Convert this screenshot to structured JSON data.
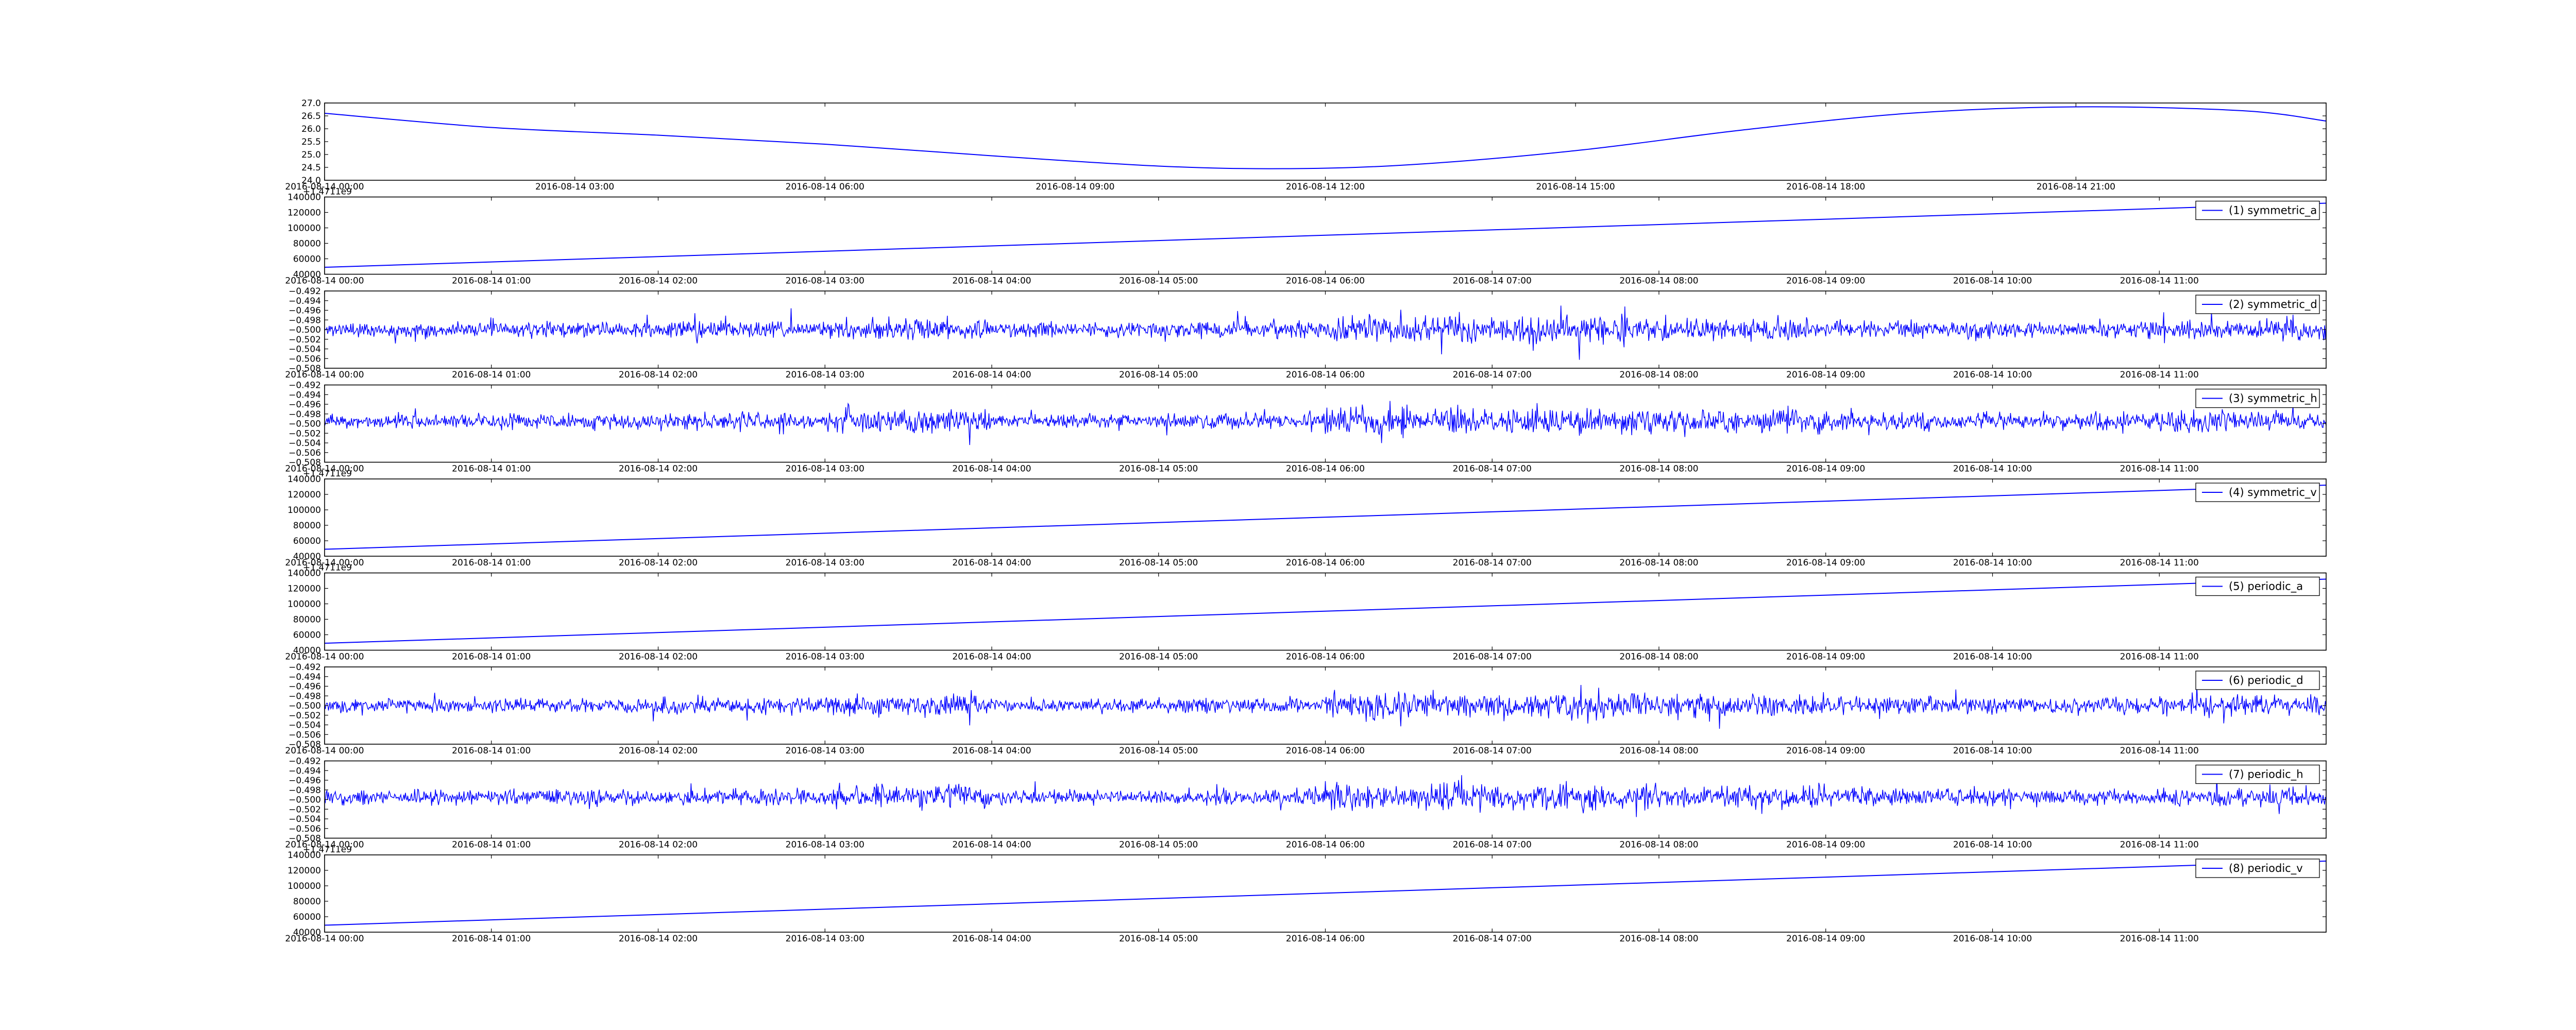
{
  "figure": {
    "background": "#ffffff",
    "line_color": "#0000ff"
  },
  "chart_data": [
    {
      "type": "line",
      "legend": "",
      "xlim": [
        "2016-08-14 00:00",
        "2016-08-15 00:00"
      ],
      "x_ticks": [
        "2016-08-14 00:00",
        "2016-08-14 03:00",
        "2016-08-14 06:00",
        "2016-08-14 09:00",
        "2016-08-14 12:00",
        "2016-08-14 15:00",
        "2016-08-14 18:00",
        "2016-08-14 21:00"
      ],
      "y_ticks": [
        "27.0",
        "26.5",
        "26.0",
        "25.5",
        "25.0",
        "24.5",
        "24.0"
      ],
      "ylim": [
        24.0,
        27.0
      ],
      "y_offset": "",
      "signal": "smooth",
      "series": [
        {
          "x": [
            "2016-08-14 00:00",
            "2016-08-14 02:00",
            "2016-08-14 04:00",
            "2016-08-14 06:00",
            "2016-08-14 08:00",
            "2016-08-14 10:00",
            "2016-08-14 11:30",
            "2016-08-14 13:00",
            "2016-08-14 15:00",
            "2016-08-14 17:00",
            "2016-08-14 19:00",
            "2016-08-14 21:00",
            "2016-08-14 23:00",
            "2016-08-15 00:00"
          ],
          "values": [
            26.6,
            26.05,
            25.75,
            25.4,
            24.95,
            24.55,
            24.45,
            24.6,
            25.15,
            25.95,
            26.6,
            26.85,
            26.7,
            26.3
          ]
        }
      ]
    },
    {
      "type": "line",
      "legend": "(1) symmetric_a",
      "xlim": [
        "2016-08-14 00:00",
        "2016-08-14 12:00"
      ],
      "x_ticks": [
        "2016-08-14 00:00",
        "2016-08-14 01:00",
        "2016-08-14 02:00",
        "2016-08-14 03:00",
        "2016-08-14 04:00",
        "2016-08-14 05:00",
        "2016-08-14 06:00",
        "2016-08-14 07:00",
        "2016-08-14 08:00",
        "2016-08-14 09:00",
        "2016-08-14 10:00",
        "2016-08-14 11:00"
      ],
      "y_ticks": [
        "140000",
        "120000",
        "100000",
        "80000",
        "60000",
        "40000"
      ],
      "ylim": [
        40000,
        140000
      ],
      "y_offset": "+1.4711e9",
      "signal": "linear",
      "series": [
        {
          "x": [
            "2016-08-14 00:00",
            "2016-08-14 12:00"
          ],
          "values": [
            49000,
            132000
          ]
        }
      ]
    },
    {
      "type": "line",
      "legend": "(2) symmetric_d",
      "xlim": [
        "2016-08-14 00:00",
        "2016-08-14 12:00"
      ],
      "x_ticks": [
        "2016-08-14 00:00",
        "2016-08-14 01:00",
        "2016-08-14 02:00",
        "2016-08-14 03:00",
        "2016-08-14 04:00",
        "2016-08-14 05:00",
        "2016-08-14 06:00",
        "2016-08-14 07:00",
        "2016-08-14 08:00",
        "2016-08-14 09:00",
        "2016-08-14 10:00",
        "2016-08-14 11:00"
      ],
      "y_ticks": [
        "−0.492",
        "−0.494",
        "−0.496",
        "−0.498",
        "−0.500",
        "−0.502",
        "−0.504",
        "−0.506",
        "−0.508"
      ],
      "ylim": [
        -0.508,
        -0.492
      ],
      "y_offset": "",
      "signal": "noise",
      "seed": 11,
      "center": -0.5,
      "amplitude": 0.002,
      "envelope": [
        1.0,
        1.1,
        1.2,
        1.5,
        1.0,
        1.2,
        2.0,
        1.9,
        1.6,
        1.3,
        1.2,
        1.4
      ]
    },
    {
      "type": "line",
      "legend": "(3) symmetric_h",
      "xlim": [
        "2016-08-14 00:00",
        "2016-08-14 12:00"
      ],
      "x_ticks": [
        "2016-08-14 00:00",
        "2016-08-14 01:00",
        "2016-08-14 02:00",
        "2016-08-14 03:00",
        "2016-08-14 04:00",
        "2016-08-14 05:00",
        "2016-08-14 06:00",
        "2016-08-14 07:00",
        "2016-08-14 08:00",
        "2016-08-14 09:00",
        "2016-08-14 10:00",
        "2016-08-14 11:00"
      ],
      "y_ticks": [
        "−0.492",
        "−0.494",
        "−0.496",
        "−0.498",
        "−0.500",
        "−0.502",
        "−0.504",
        "−0.506",
        "−0.508"
      ],
      "ylim": [
        -0.508,
        -0.492
      ],
      "y_offset": "",
      "signal": "noise",
      "seed": 23,
      "center": -0.4995,
      "amplitude": 0.002,
      "envelope": [
        1.0,
        1.1,
        1.2,
        1.6,
        1.0,
        1.2,
        2.0,
        1.9,
        1.6,
        1.3,
        1.2,
        1.4
      ]
    },
    {
      "type": "line",
      "legend": "(4) symmetric_v",
      "xlim": [
        "2016-08-14 00:00",
        "2016-08-14 12:00"
      ],
      "x_ticks": [
        "2016-08-14 00:00",
        "2016-08-14 01:00",
        "2016-08-14 02:00",
        "2016-08-14 03:00",
        "2016-08-14 04:00",
        "2016-08-14 05:00",
        "2016-08-14 06:00",
        "2016-08-14 07:00",
        "2016-08-14 08:00",
        "2016-08-14 09:00",
        "2016-08-14 10:00",
        "2016-08-14 11:00"
      ],
      "y_ticks": [
        "140000",
        "120000",
        "100000",
        "80000",
        "60000",
        "40000"
      ],
      "ylim": [
        40000,
        140000
      ],
      "y_offset": "+1.4711e9",
      "signal": "linear",
      "series": [
        {
          "x": [
            "2016-08-14 00:00",
            "2016-08-14 12:00"
          ],
          "values": [
            49000,
            132000
          ]
        }
      ]
    },
    {
      "type": "line",
      "legend": "(5) periodic_a",
      "xlim": [
        "2016-08-14 00:00",
        "2016-08-14 12:00"
      ],
      "x_ticks": [
        "2016-08-14 00:00",
        "2016-08-14 01:00",
        "2016-08-14 02:00",
        "2016-08-14 03:00",
        "2016-08-14 04:00",
        "2016-08-14 05:00",
        "2016-08-14 06:00",
        "2016-08-14 07:00",
        "2016-08-14 08:00",
        "2016-08-14 09:00",
        "2016-08-14 10:00",
        "2016-08-14 11:00"
      ],
      "y_ticks": [
        "140000",
        "120000",
        "100000",
        "80000",
        "60000",
        "40000"
      ],
      "ylim": [
        40000,
        140000
      ],
      "y_offset": "+1.4711e9",
      "signal": "linear",
      "series": [
        {
          "x": [
            "2016-08-14 00:00",
            "2016-08-14 12:00"
          ],
          "values": [
            49000,
            132000
          ]
        }
      ]
    },
    {
      "type": "line",
      "legend": "(6) periodic_d",
      "xlim": [
        "2016-08-14 00:00",
        "2016-08-14 12:00"
      ],
      "x_ticks": [
        "2016-08-14 00:00",
        "2016-08-14 01:00",
        "2016-08-14 02:00",
        "2016-08-14 03:00",
        "2016-08-14 04:00",
        "2016-08-14 05:00",
        "2016-08-14 06:00",
        "2016-08-14 07:00",
        "2016-08-14 08:00",
        "2016-08-14 09:00",
        "2016-08-14 10:00",
        "2016-08-14 11:00"
      ],
      "y_ticks": [
        "−0.492",
        "−0.494",
        "−0.496",
        "−0.498",
        "−0.500",
        "−0.502",
        "−0.504",
        "−0.506",
        "−0.508"
      ],
      "ylim": [
        -0.508,
        -0.492
      ],
      "y_offset": "",
      "signal": "noise",
      "seed": 37,
      "center": -0.5,
      "amplitude": 0.002,
      "envelope": [
        1.0,
        1.1,
        1.2,
        1.5,
        1.0,
        1.2,
        2.0,
        1.9,
        1.6,
        1.3,
        1.2,
        1.4
      ]
    },
    {
      "type": "line",
      "legend": "(7) periodic_h",
      "xlim": [
        "2016-08-14 00:00",
        "2016-08-14 12:00"
      ],
      "x_ticks": [
        "2016-08-14 00:00",
        "2016-08-14 01:00",
        "2016-08-14 02:00",
        "2016-08-14 03:00",
        "2016-08-14 04:00",
        "2016-08-14 05:00",
        "2016-08-14 06:00",
        "2016-08-14 07:00",
        "2016-08-14 08:00",
        "2016-08-14 09:00",
        "2016-08-14 10:00",
        "2016-08-14 11:00"
      ],
      "y_ticks": [
        "−0.492",
        "−0.494",
        "−0.496",
        "−0.498",
        "−0.500",
        "−0.502",
        "−0.504",
        "−0.506",
        "−0.508"
      ],
      "ylim": [
        -0.508,
        -0.492
      ],
      "y_offset": "",
      "signal": "noise",
      "seed": 53,
      "center": -0.4995,
      "amplitude": 0.002,
      "envelope": [
        1.0,
        1.1,
        1.2,
        1.6,
        1.0,
        1.2,
        2.0,
        1.9,
        1.6,
        1.3,
        1.2,
        1.4
      ]
    },
    {
      "type": "line",
      "legend": "(8) periodic_v",
      "xlim": [
        "2016-08-14 00:00",
        "2016-08-14 12:00"
      ],
      "x_ticks": [
        "2016-08-14 00:00",
        "2016-08-14 01:00",
        "2016-08-14 02:00",
        "2016-08-14 03:00",
        "2016-08-14 04:00",
        "2016-08-14 05:00",
        "2016-08-14 06:00",
        "2016-08-14 07:00",
        "2016-08-14 08:00",
        "2016-08-14 09:00",
        "2016-08-14 10:00",
        "2016-08-14 11:00"
      ],
      "y_ticks": [
        "140000",
        "120000",
        "100000",
        "80000",
        "60000",
        "40000"
      ],
      "ylim": [
        40000,
        140000
      ],
      "y_offset": "+1.4711e9",
      "signal": "linear",
      "series": [
        {
          "x": [
            "2016-08-14 00:00",
            "2016-08-14 12:00"
          ],
          "values": [
            49000,
            132000
          ]
        }
      ]
    }
  ]
}
